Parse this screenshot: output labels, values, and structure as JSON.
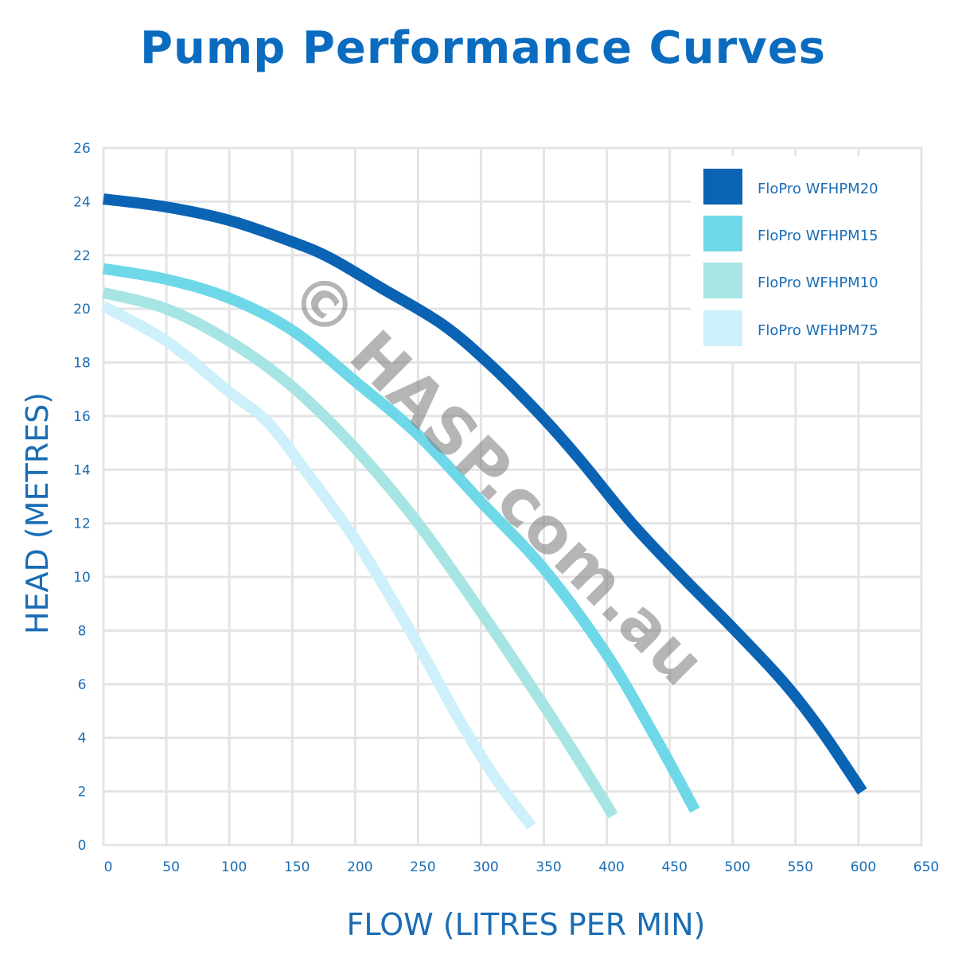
{
  "title": "Pump Performance Curves",
  "watermark": "© HASP.com.au",
  "chart_data": {
    "type": "line",
    "title": "Pump Performance Curves",
    "xlabel": "FLOW (LITRES PER MIN)",
    "ylabel": "HEAD (METRES)",
    "xlim": [
      0,
      650
    ],
    "ylim": [
      0,
      26
    ],
    "xticks": [
      0,
      50,
      100,
      150,
      200,
      250,
      300,
      350,
      400,
      450,
      500,
      550,
      600,
      650
    ],
    "yticks": [
      0,
      2,
      4,
      6,
      8,
      10,
      12,
      14,
      16,
      18,
      20,
      22,
      24,
      26
    ],
    "grid": true,
    "legend_position": "top-right",
    "series": [
      {
        "name": "FloPro WFHPM20",
        "color": "#0a63b3",
        "points": [
          [
            0,
            24.1
          ],
          [
            50,
            23.8
          ],
          [
            100,
            23.3
          ],
          [
            150,
            22.5
          ],
          [
            180,
            21.9
          ],
          [
            220,
            20.8
          ],
          [
            270,
            19.4
          ],
          [
            310,
            17.8
          ],
          [
            350,
            15.9
          ],
          [
            380,
            14.3
          ],
          [
            420,
            12.0
          ],
          [
            460,
            10.0
          ],
          [
            500,
            8.1
          ],
          [
            540,
            6.1
          ],
          [
            570,
            4.3
          ],
          [
            603,
            2.0
          ]
        ]
      },
      {
        "name": "FloPro WFHPM15",
        "color": "#6fd8e8",
        "points": [
          [
            0,
            21.5
          ],
          [
            50,
            21.1
          ],
          [
            100,
            20.4
          ],
          [
            150,
            19.2
          ],
          [
            200,
            17.3
          ],
          [
            250,
            15.3
          ],
          [
            300,
            12.8
          ],
          [
            350,
            10.3
          ],
          [
            400,
            7.1
          ],
          [
            440,
            3.9
          ],
          [
            470,
            1.3
          ]
        ]
      },
      {
        "name": "FloPro WFHPM10",
        "color": "#a6e5e3",
        "points": [
          [
            0,
            20.6
          ],
          [
            50,
            20.0
          ],
          [
            100,
            18.8
          ],
          [
            150,
            17.1
          ],
          [
            200,
            14.8
          ],
          [
            250,
            12.0
          ],
          [
            300,
            8.7
          ],
          [
            350,
            5.2
          ],
          [
            380,
            3.0
          ],
          [
            405,
            1.1
          ]
        ]
      },
      {
        "name": "FloPro WFHPM75",
        "color": "#cdf0fa",
        "points": [
          [
            0,
            20.1
          ],
          [
            50,
            18.8
          ],
          [
            100,
            16.9
          ],
          [
            130,
            15.8
          ],
          [
            160,
            14.0
          ],
          [
            200,
            11.4
          ],
          [
            240,
            8.3
          ],
          [
            280,
            4.9
          ],
          [
            310,
            2.6
          ],
          [
            340,
            0.7
          ]
        ]
      }
    ]
  }
}
